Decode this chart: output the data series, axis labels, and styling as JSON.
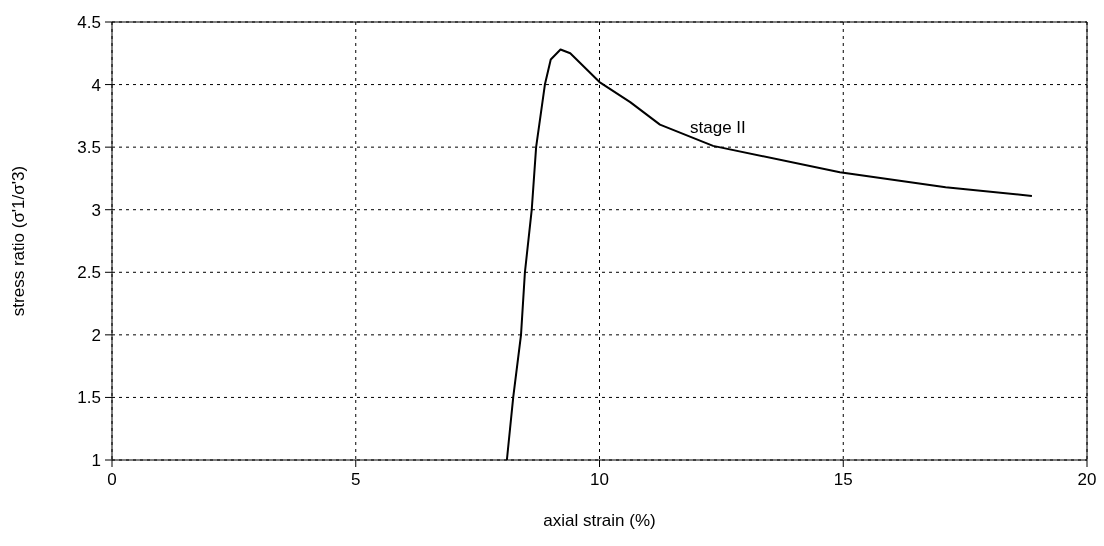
{
  "chart_data": {
    "type": "line",
    "xlabel": "axial strain (%)",
    "ylabel": "stress ratio (σ'1/σ'3)",
    "x": [
      8.1,
      8.23,
      8.39,
      8.47,
      8.61,
      8.7,
      8.88,
      9.0,
      9.2,
      9.4,
      10.0,
      10.63,
      11.24,
      12.33,
      14.93,
      17.1,
      18.87
    ],
    "series": [
      {
        "color": "#000000",
        "values": [
          1,
          1.5,
          2,
          2.5,
          3,
          3.5,
          4,
          4.2,
          4.28,
          4.25,
          4.02,
          3.86,
          3.68,
          3.51,
          3.3,
          3.18,
          3.11
        ]
      }
    ],
    "xlim": [
      0,
      20
    ],
    "xticks": [
      0,
      5,
      10,
      15,
      20
    ],
    "ylim": [
      1,
      4.5
    ],
    "yticks": [
      1,
      1.5,
      2,
      2.5,
      3,
      3.5,
      4,
      4.5
    ],
    "grid": true,
    "marker": "none",
    "line_style": "solid",
    "annotations": [
      "stage II"
    ]
  }
}
